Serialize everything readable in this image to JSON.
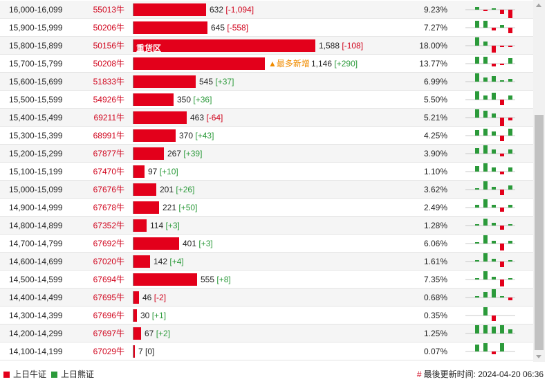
{
  "colors": {
    "bull": "#e3001b",
    "bear": "#2b9a3a",
    "text_red": "#d0021b",
    "tag": "#f08c00"
  },
  "max_count": 1588,
  "rows": [
    {
      "range": "16,000-16,099",
      "warrant": "55013牛",
      "count": 632,
      "count_text": "632",
      "change": "[-1,094]",
      "pct": "9.23%",
      "spark": [
        0,
        2,
        -1,
        1,
        -3,
        -6
      ]
    },
    {
      "range": "15,900-15,999",
      "warrant": "50206牛",
      "count": 645,
      "count_text": "645",
      "change": "[-558]",
      "pct": "7.27%",
      "spark": [
        0,
        5,
        5,
        -2,
        2,
        -4
      ]
    },
    {
      "range": "15,800-15,899",
      "warrant": "50156牛",
      "count": 1588,
      "count_text": "1,588",
      "change": "[-108]",
      "pct": "18.00%",
      "spark": [
        0,
        6,
        3,
        -5,
        -1,
        -1
      ],
      "bar_label": "重货区"
    },
    {
      "range": "15,700-15,799",
      "warrant": "50208牛",
      "count": 1146,
      "count_text": "1,146",
      "change": "[+290]",
      "pct": "13.77%",
      "spark": [
        0,
        5,
        5,
        -2,
        -1,
        4
      ],
      "tag": "▲最多新增"
    },
    {
      "range": "15,600-15,699",
      "warrant": "51833牛",
      "count": 545,
      "count_text": "545",
      "change": "[+37]",
      "pct": "6.99%",
      "spark": [
        0,
        6,
        3,
        4,
        1,
        2
      ]
    },
    {
      "range": "15,500-15,599",
      "warrant": "54926牛",
      "count": 350,
      "count_text": "350",
      "change": "[+36]",
      "pct": "5.50%",
      "spark": [
        0,
        6,
        3,
        5,
        -4,
        3
      ]
    },
    {
      "range": "15,400-15,499",
      "warrant": "69211牛",
      "count": 463,
      "count_text": "463",
      "change": "[-64]",
      "pct": "5.21%",
      "spark": [
        0,
        6,
        5,
        3,
        -6,
        -2
      ]
    },
    {
      "range": "15,300-15,399",
      "warrant": "68991牛",
      "count": 370,
      "count_text": "370",
      "change": "[+43]",
      "pct": "4.25%",
      "spark": [
        0,
        4,
        5,
        3,
        -4,
        5
      ]
    },
    {
      "range": "15,200-15,299",
      "warrant": "67877牛",
      "count": 267,
      "count_text": "267",
      "change": "[+39]",
      "pct": "3.90%",
      "spark": [
        0,
        4,
        6,
        3,
        -2,
        3
      ]
    },
    {
      "range": "15,100-15,199",
      "warrant": "67470牛",
      "count": 97,
      "count_text": "97",
      "change": "[+10]",
      "pct": "1.10%",
      "spark": [
        0,
        4,
        6,
        3,
        -2,
        3
      ]
    },
    {
      "range": "15,000-15,099",
      "warrant": "67676牛",
      "count": 201,
      "count_text": "201",
      "change": "[+26]",
      "pct": "3.62%",
      "spark": [
        0,
        1,
        6,
        2,
        -4,
        3
      ]
    },
    {
      "range": "14,900-14,999",
      "warrant": "67678牛",
      "count": 221,
      "count_text": "221",
      "change": "[+50]",
      "pct": "2.49%",
      "spark": [
        0,
        2,
        6,
        2,
        -3,
        2
      ]
    },
    {
      "range": "14,800-14,899",
      "warrant": "67352牛",
      "count": 114,
      "count_text": "114",
      "change": "[+3]",
      "pct": "1.28%",
      "spark": [
        0,
        1,
        5,
        2,
        -3,
        1
      ]
    },
    {
      "range": "14,700-14,799",
      "warrant": "67692牛",
      "count": 401,
      "count_text": "401",
      "change": "[+3]",
      "pct": "6.06%",
      "spark": [
        0,
        1,
        6,
        2,
        -5,
        2
      ]
    },
    {
      "range": "14,600-14,699",
      "warrant": "67020牛",
      "count": 142,
      "count_text": "142",
      "change": "[+4]",
      "pct": "1.61%",
      "spark": [
        0,
        1,
        6,
        2,
        -4,
        1
      ]
    },
    {
      "range": "14,500-14,599",
      "warrant": "67694牛",
      "count": 555,
      "count_text": "555",
      "change": "[+8]",
      "pct": "7.35%",
      "spark": [
        0,
        1,
        6,
        2,
        -5,
        1
      ]
    },
    {
      "range": "14,400-14,499",
      "warrant": "67695牛",
      "count": 46,
      "count_text": "46",
      "change": "[-2]",
      "pct": "0.68%",
      "spark": [
        0,
        1,
        4,
        6,
        1,
        -2
      ]
    },
    {
      "range": "14,300-14,399",
      "warrant": "67696牛",
      "count": 30,
      "count_text": "30",
      "change": "[+1]",
      "pct": "0.35%",
      "spark": [
        0,
        0,
        6,
        -4,
        0,
        0
      ]
    },
    {
      "range": "14,200-14,299",
      "warrant": "67697牛",
      "count": 67,
      "count_text": "67",
      "change": "[+2]",
      "pct": "1.25%",
      "spark": [
        0,
        6,
        6,
        5,
        6,
        3
      ]
    },
    {
      "range": "14,100-14,199",
      "warrant": "67029牛",
      "count": 7,
      "count_text": "7",
      "change": "[0]",
      "pct": "0.07%",
      "spark": [
        0,
        5,
        6,
        -2,
        6,
        0
      ]
    }
  ],
  "footer": {
    "legend_bull": "上日牛证",
    "legend_bear": "上日熊证",
    "updated_hash": "#",
    "updated": "最後更新时间: 2024-04-20 06:36"
  }
}
